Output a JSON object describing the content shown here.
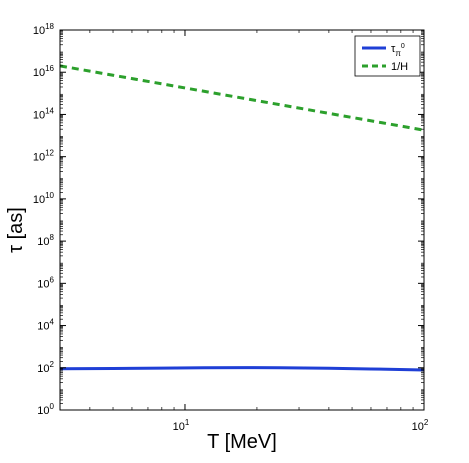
{
  "chart_data": {
    "type": "line",
    "xlabel": "T [MeV]",
    "ylabel": "τ [as]",
    "xscale": "log",
    "yscale": "log",
    "xlim": [
      3,
      100
    ],
    "ylim": [
      1,
      1e+18
    ],
    "x_ticks": [
      {
        "value": 10,
        "base": "10",
        "exp": "1"
      },
      {
        "value": 100,
        "base": "10",
        "exp": "2"
      }
    ],
    "y_ticks": [
      {
        "value": 1,
        "base": "10",
        "exp": "0"
      },
      {
        "value": 100,
        "base": "10",
        "exp": "2"
      },
      {
        "value": 10000,
        "base": "10",
        "exp": "4"
      },
      {
        "value": 1000000,
        "base": "10",
        "exp": "6"
      },
      {
        "value": 100000000,
        "base": "10",
        "exp": "8"
      },
      {
        "value": 10000000000,
        "base": "10",
        "exp": "10"
      },
      {
        "value": 1000000000000,
        "base": "10",
        "exp": "12"
      },
      {
        "value": 100000000000000,
        "base": "10",
        "exp": "14"
      },
      {
        "value": 10000000000000000,
        "base": "10",
        "exp": "16"
      },
      {
        "value": 1000000000000000000,
        "base": "10",
        "exp": "18"
      }
    ],
    "series": [
      {
        "name": "τπ0",
        "legend_main": "τ",
        "legend_sub": "π",
        "legend_sup": "0",
        "color": "#1f3fd6",
        "style": "solid",
        "x": [
          3,
          5,
          8,
          12,
          18,
          25,
          40,
          60,
          100
        ],
        "y": [
          90,
          92,
          96,
          100,
          102,
          100,
          95,
          88,
          78
        ]
      },
      {
        "name": "1/H",
        "color": "#2ca02c",
        "style": "dashed",
        "x": [
          3,
          5,
          10,
          20,
          50,
          100
        ],
        "y": [
          2e+16,
          7200000000000000.0,
          1800000000000000.0,
          450000000000000.0,
          72000000000000.0,
          18000000000000.0
        ]
      }
    ],
    "legend_position": "top-right",
    "grid": false
  }
}
